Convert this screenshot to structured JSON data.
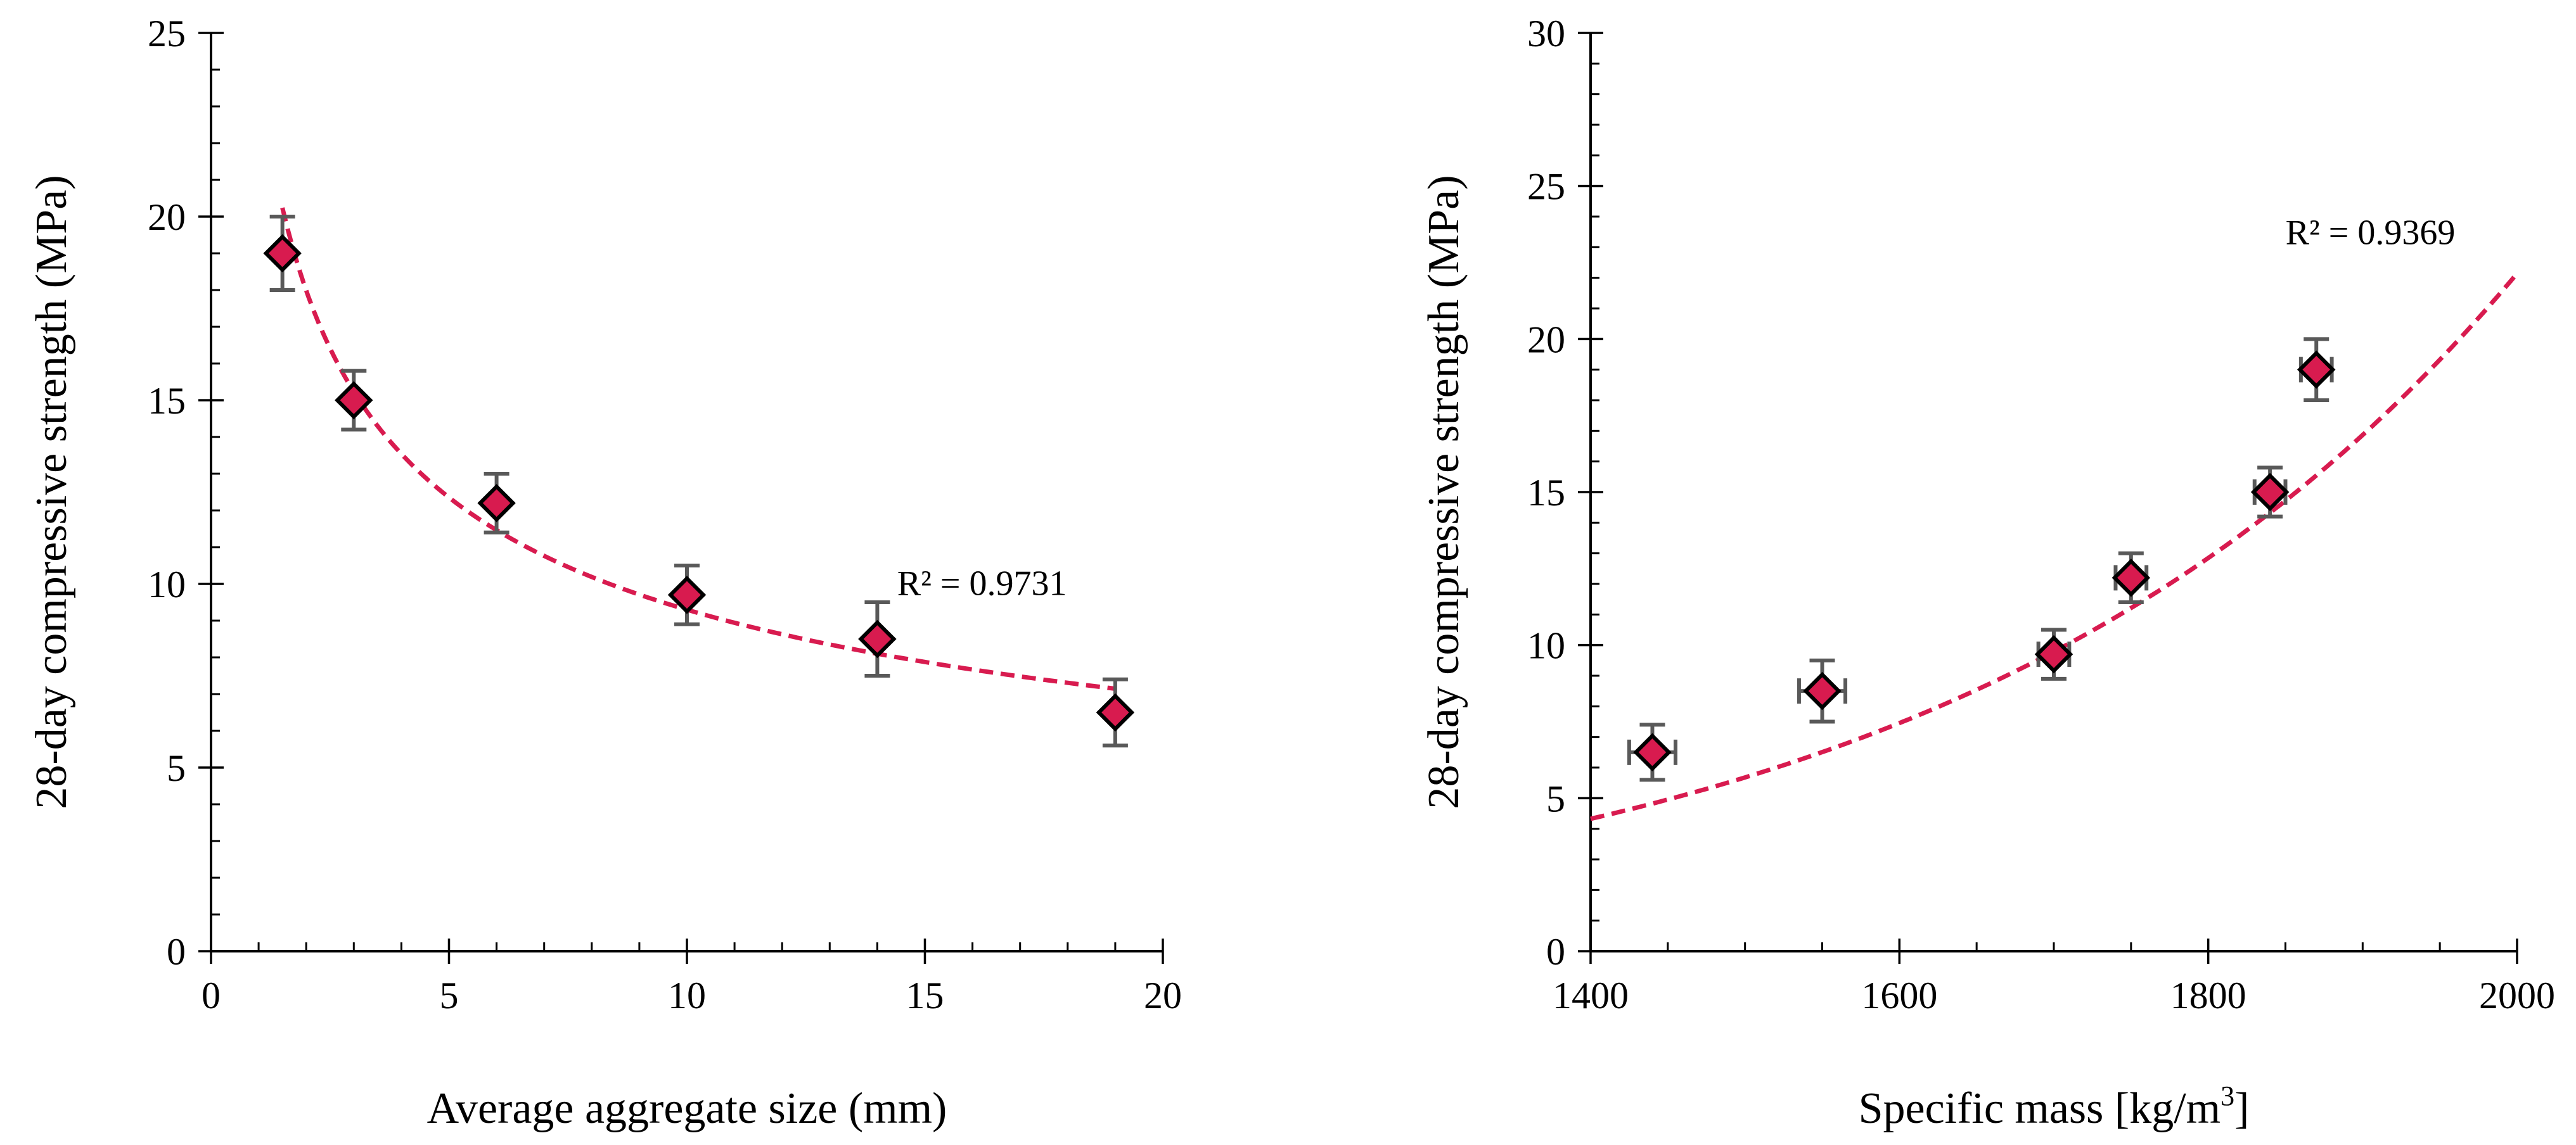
{
  "chart_data": [
    {
      "type": "scatter",
      "xlabel": "Average aggregate size (mm)",
      "ylabel": "28-day compressive strength (MPa)",
      "xlim": [
        0,
        20
      ],
      "ylim": [
        0,
        25
      ],
      "xticks": [
        0,
        5,
        10,
        15,
        20
      ],
      "yticks": [
        0,
        5,
        10,
        15,
        20,
        25
      ],
      "x_minor_step": 1,
      "y_minor_step": 1,
      "series": [
        {
          "name": "Compressive strength",
          "x": [
            1.5,
            3,
            6,
            10,
            14,
            19
          ],
          "y": [
            19,
            15,
            12.2,
            9.7,
            8.5,
            6.5
          ],
          "y_error": [
            1.0,
            0.8,
            0.8,
            0.8,
            1.0,
            0.9
          ],
          "x_error": [
            0,
            0,
            0,
            0,
            0,
            0
          ]
        }
      ],
      "trendline": {
        "model": "power",
        "a": 23.9,
        "b": -0.41,
        "x_range": [
          1.5,
          19
        ]
      },
      "annotation": {
        "text": "R² = 0.9731",
        "x": 16.2,
        "y": 9.7
      }
    },
    {
      "type": "scatter",
      "xlabel": "Specific mass [kg/m",
      "xlabel_sup": "3",
      "xlabel_end": "]",
      "ylabel": "28-day compressive strength (MPa)",
      "xlim": [
        1400,
        2000
      ],
      "ylim": [
        0,
        30
      ],
      "xticks": [
        1400,
        1600,
        1800,
        2000
      ],
      "yticks": [
        0,
        5,
        10,
        15,
        20,
        25,
        30
      ],
      "x_minor_step": 50,
      "y_minor_step": 1,
      "series": [
        {
          "name": "Compressive strength",
          "x": [
            1440,
            1550,
            1700,
            1750,
            1840,
            1870
          ],
          "y": [
            6.5,
            8.5,
            9.7,
            12.2,
            15,
            19
          ],
          "y_error": [
            0.9,
            1.0,
            0.8,
            0.8,
            0.8,
            1.0
          ],
          "x_error": [
            15,
            15,
            10,
            10,
            10,
            10
          ]
        }
      ],
      "trendline": {
        "model": "exponential",
        "a": 0.0957,
        "b": 0.002722,
        "x_range": [
          1400,
          2000
        ]
      },
      "annotation": {
        "text": "R² = 0.9369",
        "x": 1905,
        "y": 23.1
      }
    }
  ],
  "colors": {
    "marker_fill": "#d81b4f",
    "marker_edge": "#000000",
    "trendline": "#d81b4f",
    "error_bar": "#595959",
    "axis": "#000000"
  }
}
